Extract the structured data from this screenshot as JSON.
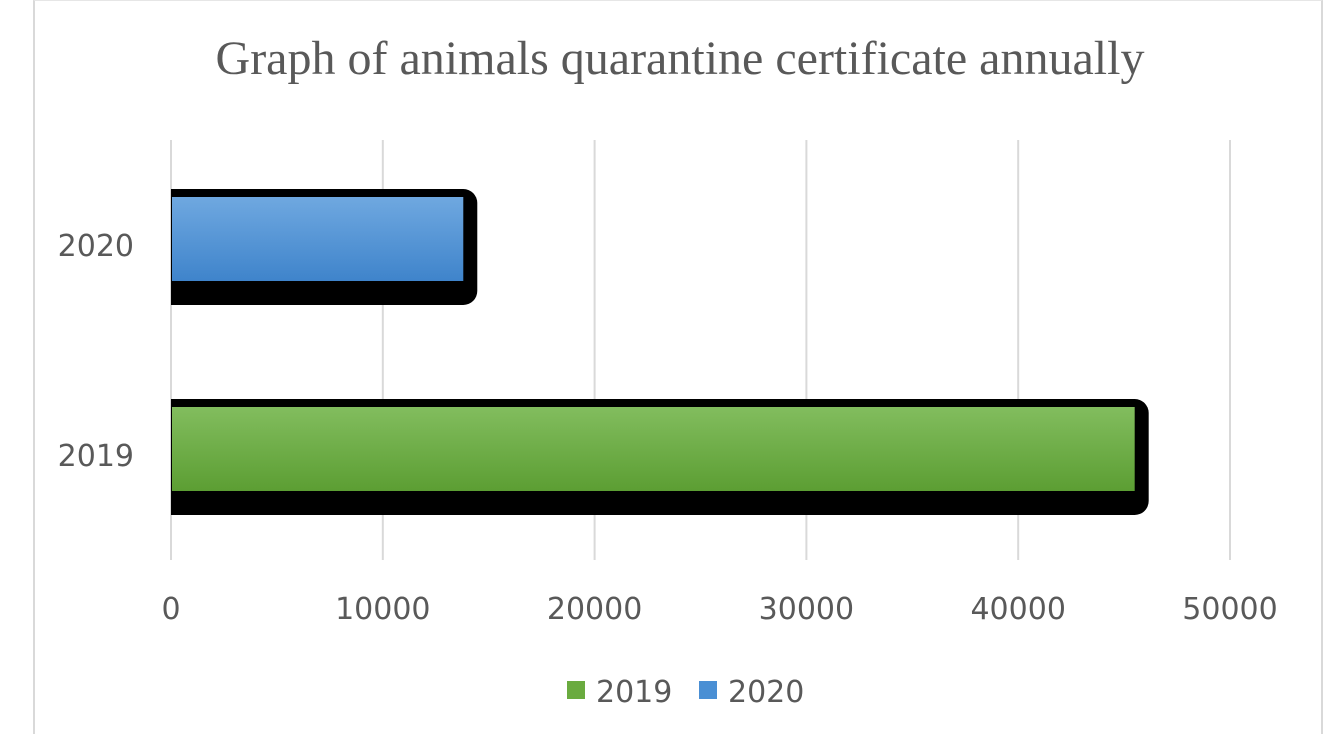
{
  "chart_data": {
    "type": "bar",
    "orientation": "horizontal",
    "title": "Graph of animals quarantine certificate annually",
    "categories": [
      "2020",
      "2019"
    ],
    "series": [
      {
        "name": "2020",
        "category": "2020",
        "value": 13800,
        "color": "#4a8fd4"
      },
      {
        "name": "2019",
        "category": "2019",
        "value": 45500,
        "color": "#6aab3f"
      }
    ],
    "xlim": [
      0,
      50000
    ],
    "xticks": [
      "0",
      "10000",
      "20000",
      "30000",
      "40000",
      "50000"
    ],
    "grid": true,
    "legend": {
      "placement": "bottom",
      "entries": [
        {
          "label": "2019",
          "color": "#6aab3f"
        },
        {
          "label": "2020",
          "color": "#4a8fd4"
        }
      ]
    },
    "xlabel": "",
    "ylabel": ""
  }
}
